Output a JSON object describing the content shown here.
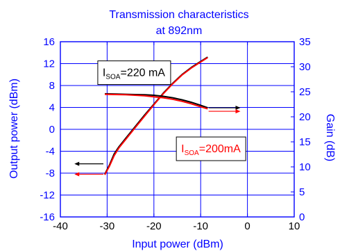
{
  "chart_data": {
    "type": "line",
    "title_lines": [
      "Transmission characteristics",
      "at 892nm"
    ],
    "xlabel": "Input power (dBm)",
    "ylabel_left": "Output power (dBm)",
    "ylabel_right": "Gain (dB)",
    "xlim": [
      -40,
      10
    ],
    "ylim_left": [
      -16,
      16
    ],
    "ylim_right": [
      0,
      35
    ],
    "x_ticks": [
      -40,
      -30,
      -20,
      -10,
      0,
      10
    ],
    "y_left_ticks": [
      -16,
      -12,
      -8,
      -4,
      0,
      4,
      8,
      12,
      16
    ],
    "y_right_ticks": [
      0,
      5,
      10,
      15,
      20,
      25,
      30,
      35
    ],
    "grid": true,
    "series": [
      {
        "axis": "left",
        "color": "#000000",
        "x": [
          -30.5,
          -29.5,
          -28.5,
          -27.5,
          -26,
          -24,
          -22,
          -20,
          -18,
          -16,
          -14,
          -12,
          -10,
          -8.5
        ],
        "y": [
          -8.2,
          -6.5,
          -4.5,
          -3.2,
          -1.6,
          0.5,
          2.6,
          4.6,
          6.6,
          8.4,
          10.0,
          11.3,
          12.4,
          13.2
        ]
      },
      {
        "axis": "left",
        "color": "#ff0000",
        "x": [
          -30.5,
          -29.5,
          -28.5,
          -27.5,
          -26,
          -24,
          -22,
          -20,
          -18,
          -16,
          -14,
          -12,
          -10,
          -8.5
        ],
        "y": [
          -8.3,
          -6.7,
          -4.8,
          -3.4,
          -1.8,
          0.3,
          2.4,
          4.5,
          6.5,
          8.3,
          9.9,
          11.2,
          12.3,
          13.1
        ]
      },
      {
        "axis": "right",
        "color": "#000000",
        "x": [
          -30.5,
          -28,
          -26,
          -24,
          -22,
          -20,
          -18,
          -16,
          -14,
          -12,
          -10,
          -8.5
        ],
        "y": [
          24.6,
          24.55,
          24.5,
          24.45,
          24.4,
          24.3,
          24.1,
          23.8,
          23.4,
          22.9,
          22.3,
          21.8
        ]
      },
      {
        "axis": "right",
        "color": "#ff0000",
        "x": [
          -30.5,
          -28,
          -26,
          -24,
          -22,
          -20,
          -18,
          -16,
          -14,
          -12,
          -10,
          -8.5
        ],
        "y": [
          24.5,
          24.45,
          24.4,
          24.3,
          24.2,
          24.0,
          23.8,
          23.5,
          23.1,
          22.6,
          22.0,
          21.6
        ]
      }
    ],
    "annotations": [
      {
        "main": "I",
        "sub": "SOA",
        "rest": "=220 mA",
        "color": "#000000",
        "box_x": -32,
        "box_y": 12.5
      },
      {
        "main": "I",
        "sub": "SOA",
        "rest": "=200mA",
        "color": "#ff0000",
        "box_x": -15.2,
        "box_y": -1.4
      }
    ],
    "arrows": [
      {
        "color": "#000000",
        "axis": "left",
        "x1": -30.8,
        "x2": -37,
        "y": -6.3
      },
      {
        "color": "#ff0000",
        "axis": "left",
        "x1": -30.8,
        "x2": -37,
        "y": -8.2
      },
      {
        "color": "#000000",
        "axis": "right",
        "x1": -8.3,
        "x2": -1.5,
        "y": 21.8
      },
      {
        "color": "#ff0000",
        "axis": "right",
        "x1": -8.3,
        "x2": -1.5,
        "y": 21.1
      }
    ]
  }
}
